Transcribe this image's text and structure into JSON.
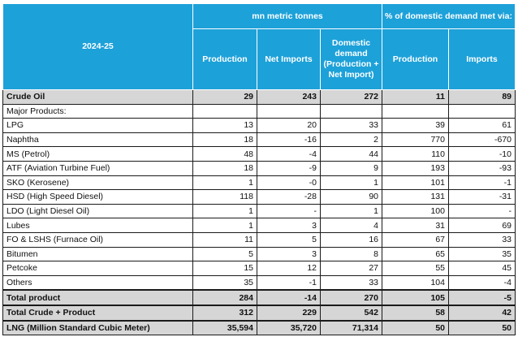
{
  "table": {
    "header": {
      "year_label": "2024-25",
      "group1_label": "mn metric tonnes",
      "group2_label": "% of domestic demand met via:",
      "columns": [
        "Production",
        "Net Imports",
        "Domestic demand (Production + Net Import)",
        "Production",
        "Imports"
      ]
    },
    "rows": [
      {
        "label": "Crude Oil",
        "values": [
          "29",
          "243",
          "272",
          "11",
          "89"
        ],
        "bold": true
      },
      {
        "label": "Major Products:",
        "values": [
          "",
          "",
          "",
          "",
          ""
        ],
        "bold": false
      },
      {
        "label": "LPG",
        "values": [
          "13",
          "20",
          "33",
          "39",
          "61"
        ],
        "bold": false
      },
      {
        "label": "Naphtha",
        "values": [
          "18",
          "-16",
          "2",
          "770",
          "-670"
        ],
        "bold": false
      },
      {
        "label": "MS (Petrol)",
        "values": [
          "48",
          "-4",
          "44",
          "110",
          "-10"
        ],
        "bold": false
      },
      {
        "label": "ATF (Aviation Turbine Fuel)",
        "values": [
          "18",
          "-9",
          "9",
          "193",
          "-93"
        ],
        "bold": false
      },
      {
        "label": "SKO (Kerosene)",
        "values": [
          "1",
          "-0",
          "1",
          "101",
          "-1"
        ],
        "bold": false
      },
      {
        "label": "HSD (High Speed Diesel)",
        "values": [
          "118",
          "-28",
          "90",
          "131",
          "-31"
        ],
        "bold": false
      },
      {
        "label": "LDO (Light Diesel Oil)",
        "values": [
          "1",
          "-",
          "1",
          "100",
          "-"
        ],
        "bold": false
      },
      {
        "label": "Lubes",
        "values": [
          "1",
          "3",
          "4",
          "31",
          "69"
        ],
        "bold": false
      },
      {
        "label": "FO & LSHS (Furnace Oil)",
        "values": [
          "11",
          "5",
          "16",
          "67",
          "33"
        ],
        "bold": false
      },
      {
        "label": "Bitumen",
        "values": [
          "5",
          "3",
          "8",
          "65",
          "35"
        ],
        "bold": false
      },
      {
        "label": "Petcoke",
        "values": [
          "15",
          "12",
          "27",
          "55",
          "45"
        ],
        "bold": false
      },
      {
        "label": "Others",
        "values": [
          "35",
          "-1",
          "33",
          "104",
          "-4"
        ],
        "bold": false
      },
      {
        "label": "Total product",
        "values": [
          "284",
          "-14",
          "270",
          "105",
          "-5"
        ],
        "bold": true
      },
      {
        "label": "Total Crude + Product",
        "values": [
          "312",
          "229",
          "542",
          "58",
          "42"
        ],
        "bold": true
      },
      {
        "label": "LNG (Million Standard Cubic Meter)",
        "values": [
          "35,594",
          "35,720",
          "71,314",
          "50",
          "50"
        ],
        "bold": true
      }
    ]
  }
}
